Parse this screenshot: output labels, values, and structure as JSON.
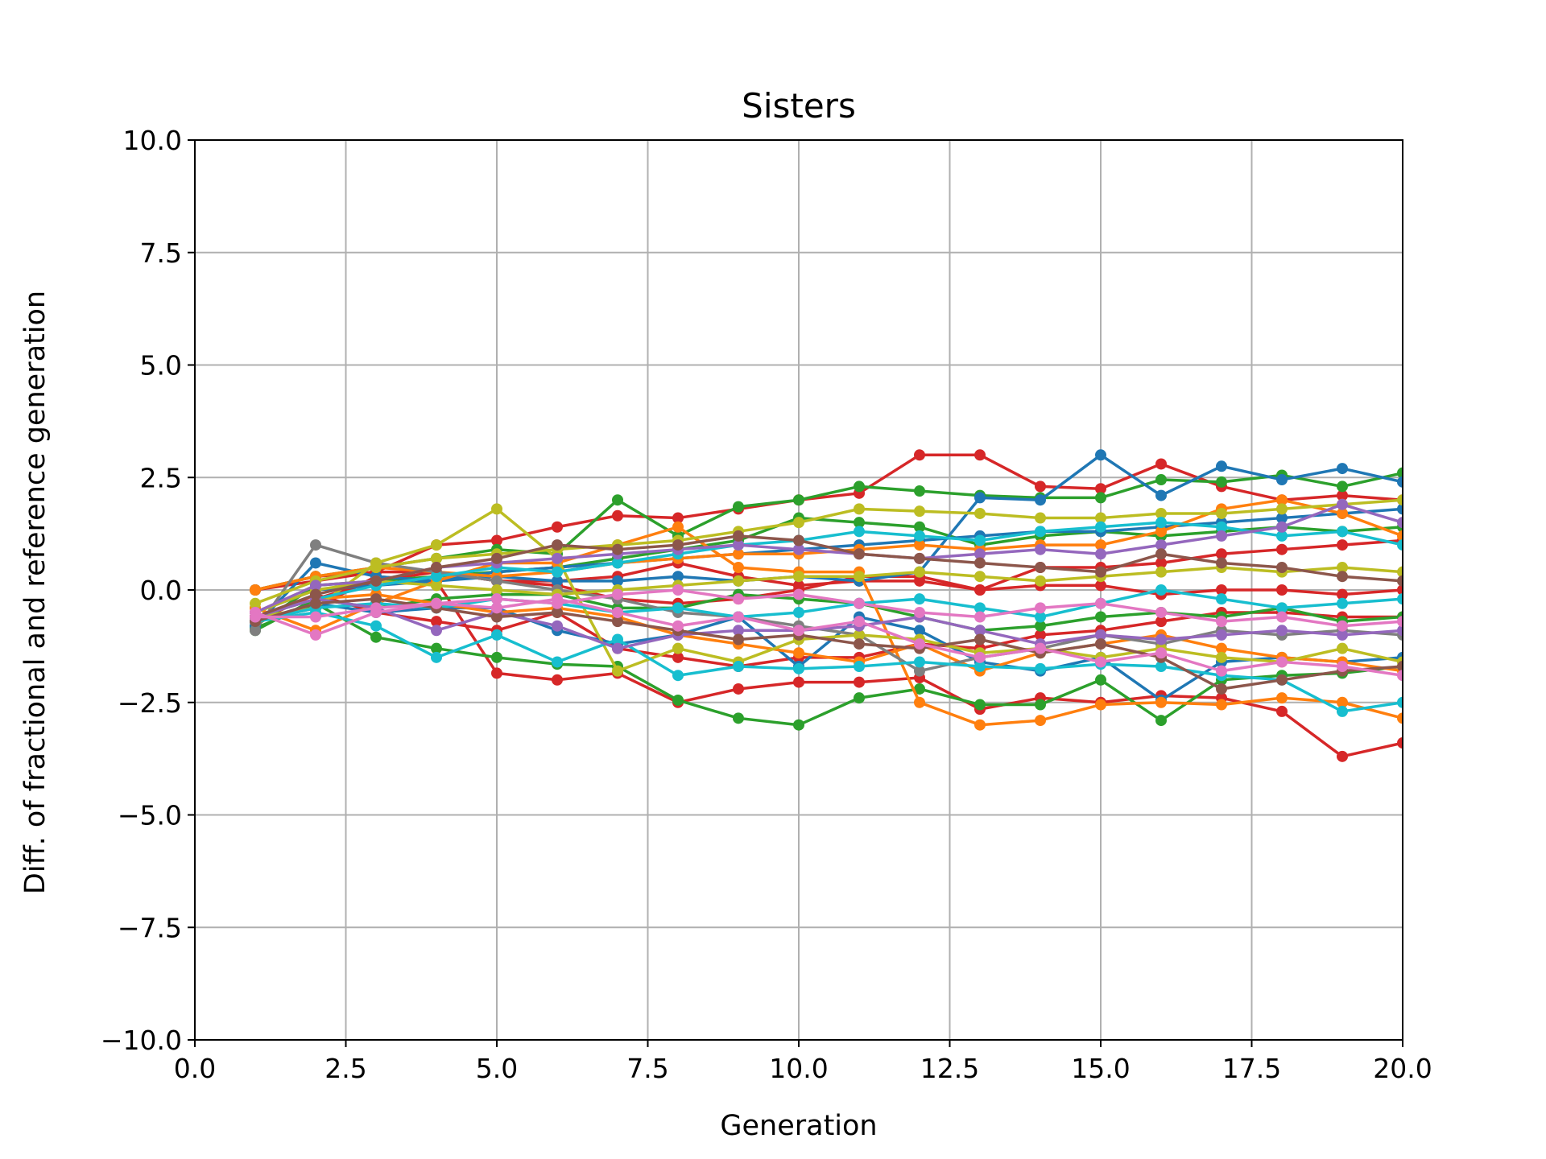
{
  "chart_data": {
    "type": "line",
    "title": "Sisters",
    "xlabel": "Generation",
    "ylabel": "Diff. of fractional and reference generation",
    "xlim": [
      0,
      20
    ],
    "ylim": [
      -10,
      10
    ],
    "x_ticks": [
      "0.0",
      "2.5",
      "5.0",
      "7.5",
      "10.0",
      "12.5",
      "15.0",
      "17.5",
      "20.0"
    ],
    "y_ticks": [
      "−10.0",
      "−7.5",
      "−5.0",
      "−2.5",
      "0.0",
      "2.5",
      "5.0",
      "7.5",
      "10.0"
    ],
    "grid": true,
    "legend": "none",
    "marker": "circle",
    "x": [
      1,
      2,
      3,
      4,
      5,
      6,
      7,
      8,
      9,
      10,
      11,
      12,
      13,
      14,
      15,
      16,
      17,
      18,
      19,
      20
    ],
    "series": [
      {
        "color": "#d62728",
        "values": [
          0,
          0.3,
          0.4,
          0.4,
          0.2,
          0.2,
          0.3,
          0.6,
          0.3,
          0.1,
          0.2,
          0.2,
          0.0,
          0.1,
          0.1,
          -0.1,
          0.0,
          0.0,
          -0.1,
          0.0
        ]
      },
      {
        "color": "#d62728",
        "values": [
          -0.6,
          -0.2,
          0.2,
          0.4,
          0.2,
          0.1,
          -0.2,
          -0.3,
          -0.2,
          0.0,
          0.3,
          0.3,
          0.0,
          0.5,
          0.5,
          0.6,
          0.8,
          0.9,
          1.0,
          1.1
        ]
      },
      {
        "color": "#d62728",
        "values": [
          0,
          0.2,
          0.4,
          1.0,
          1.1,
          1.4,
          1.65,
          1.6,
          1.8,
          2.0,
          2.15,
          3.0,
          3.0,
          2.3,
          2.25,
          2.8,
          2.3,
          2.0,
          2.1,
          2.0
        ]
      },
      {
        "color": "#d62728",
        "values": [
          -0.7,
          -0.4,
          0.3,
          0.2,
          -1.85,
          -2.0,
          -1.85,
          -2.5,
          -2.2,
          -2.05,
          -2.05,
          -1.95,
          -2.65,
          -2.4,
          -2.5,
          -2.35,
          -2.4,
          -2.7,
          -3.7,
          -3.4
        ]
      },
      {
        "color": "#d62728",
        "values": [
          -0.7,
          -0.1,
          -0.5,
          -0.7,
          -0.9,
          -0.5,
          -1.3,
          -1.5,
          -1.7,
          -1.5,
          -1.5,
          -1.2,
          -1.3,
          -1.0,
          -0.9,
          -0.7,
          -0.5,
          -0.5,
          -0.6,
          -0.6
        ]
      },
      {
        "color": "#2ca02c",
        "values": [
          -0.85,
          -0.3,
          -1.05,
          -1.3,
          -1.5,
          -1.65,
          -1.7,
          -2.45,
          -2.85,
          -3.0,
          -2.4,
          -2.2,
          -2.55,
          -2.55,
          -2.0,
          -2.9,
          -2.0,
          -1.9,
          -1.85,
          -1.7
        ]
      },
      {
        "color": "#2ca02c",
        "values": [
          0,
          0.3,
          0.5,
          0.7,
          0.9,
          0.8,
          2.0,
          1.2,
          1.85,
          2.0,
          2.3,
          2.2,
          2.1,
          2.05,
          2.05,
          2.45,
          2.4,
          2.55,
          2.3,
          2.6
        ]
      },
      {
        "color": "#2ca02c",
        "values": [
          -0.9,
          -0.2,
          -0.4,
          -0.2,
          -0.1,
          -0.1,
          -0.4,
          -0.4,
          -0.1,
          -0.2,
          -0.3,
          -0.6,
          -0.9,
          -0.8,
          -0.6,
          -0.5,
          -0.6,
          -0.4,
          -0.7,
          -0.6
        ]
      },
      {
        "color": "#2ca02c",
        "values": [
          -0.8,
          0.1,
          0.2,
          0.3,
          0.4,
          0.5,
          0.7,
          0.9,
          1.1,
          1.6,
          1.5,
          1.4,
          1.0,
          1.2,
          1.3,
          1.2,
          1.3,
          1.4,
          1.3,
          1.4
        ]
      },
      {
        "color": "#1f77b4",
        "values": [
          -0.8,
          0.6,
          0.3,
          0.2,
          0.3,
          0.2,
          0.2,
          0.3,
          0.2,
          0.3,
          0.2,
          0.4,
          2.05,
          2.0,
          3.0,
          2.1,
          2.75,
          2.45,
          2.7,
          2.4
        ]
      },
      {
        "color": "#1f77b4",
        "values": [
          -0.7,
          -0.3,
          -0.5,
          -0.4,
          -0.4,
          -0.9,
          -1.2,
          -1.0,
          -0.6,
          -1.7,
          -0.6,
          -0.9,
          -1.6,
          -1.8,
          -1.5,
          -2.45,
          -1.6,
          -1.5,
          -1.6,
          -1.5
        ]
      },
      {
        "color": "#1f77b4",
        "values": [
          -0.5,
          0.0,
          0.1,
          0.2,
          0.4,
          0.5,
          0.6,
          0.7,
          0.8,
          0.9,
          1.0,
          1.1,
          1.2,
          1.3,
          1.3,
          1.4,
          1.5,
          1.6,
          1.7,
          1.8
        ]
      },
      {
        "color": "#ff7f0e",
        "values": [
          -0.4,
          -0.9,
          -0.3,
          0.2,
          0.6,
          0.6,
          1.0,
          1.4,
          0.5,
          0.4,
          0.4,
          -2.5,
          -3.0,
          -2.9,
          -2.55,
          -2.5,
          -2.55,
          -2.4,
          -2.5,
          -2.85
        ]
      },
      {
        "color": "#ff7f0e",
        "values": [
          0,
          0.3,
          0.5,
          0.4,
          0.3,
          0.4,
          0.6,
          0.7,
          0.8,
          0.8,
          0.9,
          1.0,
          0.9,
          1.0,
          1.0,
          1.3,
          1.8,
          2.0,
          1.7,
          1.2
        ]
      },
      {
        "color": "#ff7f0e",
        "values": [
          -0.6,
          -0.2,
          -0.1,
          -0.3,
          -0.5,
          -0.4,
          -0.6,
          -1.0,
          -1.2,
          -1.4,
          -1.6,
          -1.2,
          -1.8,
          -1.4,
          -1.2,
          -1.0,
          -1.3,
          -1.5,
          -1.6,
          -1.8
        ]
      },
      {
        "color": "#7f7f7f",
        "values": [
          -0.9,
          1.0,
          0.6,
          0.4,
          0.2,
          0.0,
          -0.2,
          -0.5,
          -0.6,
          -0.8,
          -1.0,
          -1.8,
          -1.5,
          -1.3,
          -1.0,
          -1.2,
          -0.9,
          -1.0,
          -0.9,
          -1.0
        ]
      },
      {
        "color": "#bcbd22",
        "values": [
          -0.6,
          -0.4,
          0.6,
          1.0,
          1.8,
          0.7,
          -1.8,
          -1.3,
          -1.6,
          -1.1,
          -1.0,
          -1.1,
          -1.4,
          -1.3,
          -1.5,
          -1.3,
          -1.5,
          -1.6,
          -1.3,
          -1.6
        ]
      },
      {
        "color": "#bcbd22",
        "values": [
          -0.3,
          0.2,
          0.5,
          0.7,
          0.8,
          0.9,
          1.0,
          1.1,
          1.3,
          1.5,
          1.8,
          1.75,
          1.7,
          1.6,
          1.6,
          1.7,
          1.7,
          1.8,
          1.9,
          2.0
        ]
      },
      {
        "color": "#bcbd22",
        "values": [
          -0.5,
          0.0,
          0.2,
          0.1,
          0.0,
          -0.1,
          0.0,
          0.1,
          0.2,
          0.3,
          0.3,
          0.4,
          0.3,
          0.2,
          0.3,
          0.4,
          0.5,
          0.4,
          0.5,
          0.4
        ]
      },
      {
        "color": "#17becf",
        "values": [
          -0.7,
          -0.5,
          -0.8,
          -1.5,
          -1.0,
          -1.6,
          -1.1,
          -1.9,
          -1.7,
          -1.75,
          -1.7,
          -1.6,
          -1.7,
          -1.75,
          -1.65,
          -1.7,
          -1.9,
          -2.0,
          -2.7,
          -2.5
        ]
      },
      {
        "color": "#17becf",
        "values": [
          -0.6,
          -0.2,
          0.1,
          0.3,
          0.5,
          0.4,
          0.6,
          0.8,
          1.0,
          1.1,
          1.3,
          1.2,
          1.1,
          1.3,
          1.4,
          1.5,
          1.4,
          1.2,
          1.3,
          1.0
        ]
      },
      {
        "color": "#17becf",
        "values": [
          -0.7,
          -0.4,
          -0.3,
          -0.4,
          -0.2,
          -0.3,
          -0.5,
          -0.4,
          -0.6,
          -0.5,
          -0.3,
          -0.2,
          -0.4,
          -0.6,
          -0.3,
          0.0,
          -0.2,
          -0.4,
          -0.3,
          -0.2
        ]
      },
      {
        "color": "#9467bd",
        "values": [
          -0.6,
          -0.2,
          -0.4,
          -0.9,
          -0.5,
          -0.8,
          -1.3,
          -1.0,
          -0.9,
          -0.9,
          -0.8,
          -0.6,
          -0.9,
          -1.2,
          -1.0,
          -1.1,
          -1.0,
          -0.9,
          -1.0,
          -0.9
        ]
      },
      {
        "color": "#9467bd",
        "values": [
          -0.5,
          0.1,
          0.2,
          0.5,
          0.6,
          0.7,
          0.8,
          0.9,
          1.0,
          0.9,
          0.8,
          0.7,
          0.8,
          0.9,
          0.8,
          1.0,
          1.2,
          1.4,
          1.9,
          1.5
        ]
      },
      {
        "color": "#8c564b",
        "values": [
          -0.6,
          -0.1,
          0.2,
          0.5,
          0.7,
          1.0,
          0.9,
          1.0,
          1.2,
          1.1,
          0.8,
          0.7,
          0.6,
          0.5,
          0.4,
          0.8,
          0.6,
          0.5,
          0.3,
          0.2
        ]
      },
      {
        "color": "#8c564b",
        "values": [
          -0.7,
          -0.3,
          -0.2,
          -0.4,
          -0.6,
          -0.5,
          -0.7,
          -0.9,
          -1.1,
          -1.0,
          -1.2,
          -1.3,
          -1.1,
          -1.4,
          -1.2,
          -1.5,
          -2.2,
          -2.0,
          -1.8,
          -1.7
        ]
      },
      {
        "color": "#e377c2",
        "values": [
          -0.5,
          -1.0,
          -0.5,
          -0.3,
          -0.4,
          -0.2,
          -0.5,
          -0.8,
          -0.6,
          -0.9,
          -0.7,
          -1.2,
          -1.5,
          -1.3,
          -1.6,
          -1.4,
          -1.8,
          -1.6,
          -1.7,
          -1.9
        ]
      },
      {
        "color": "#e377c2",
        "values": [
          -0.6,
          -0.6,
          -0.4,
          -0.3,
          -0.2,
          -0.3,
          -0.1,
          0.0,
          -0.2,
          -0.1,
          -0.3,
          -0.5,
          -0.6,
          -0.4,
          -0.3,
          -0.5,
          -0.7,
          -0.6,
          -0.8,
          -0.7
        ]
      }
    ]
  }
}
